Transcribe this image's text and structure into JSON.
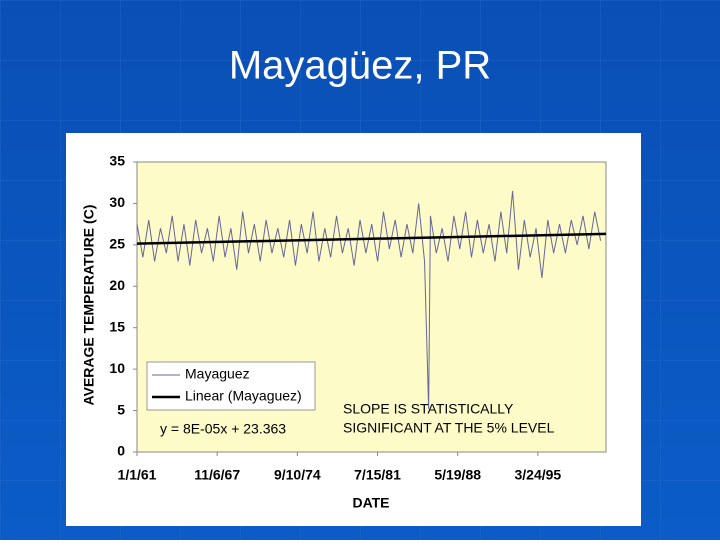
{
  "chart_data": {
    "type": "line",
    "title": "Mayagüez, PR",
    "xlabel": "DATE",
    "ylabel": "AVERAGE TEMPERATURE (C)",
    "xlim": [
      22282,
      36907
    ],
    "xticks": [
      {
        "value": 22282,
        "label": "1/1/61"
      },
      {
        "value": 24782,
        "label": "11/6/67"
      },
      {
        "value": 27282,
        "label": "9/10/74"
      },
      {
        "value": 29782,
        "label": "7/15/81"
      },
      {
        "value": 32282,
        "label": "5/19/88"
      },
      {
        "value": 34782,
        "label": "3/24/95"
      }
    ],
    "ylim": [
      0,
      35
    ],
    "yticks": [
      0,
      5,
      10,
      15,
      20,
      25,
      30,
      35
    ],
    "plot_background": "#fdfbc8",
    "series": [
      {
        "name": "Mayaguez",
        "color": "#66669a",
        "x": [
          22282,
          22465,
          22648,
          22831,
          23014,
          23197,
          23380,
          23563,
          23746,
          23929,
          24112,
          24295,
          24478,
          24661,
          24844,
          25027,
          25210,
          25393,
          25576,
          25759,
          25942,
          26125,
          26308,
          26491,
          26674,
          26857,
          27040,
          27223,
          27406,
          27589,
          27772,
          27955,
          28138,
          28321,
          28504,
          28687,
          28870,
          29053,
          29236,
          29419,
          29602,
          29785,
          29968,
          30151,
          30334,
          30517,
          30700,
          30883,
          31066,
          31249,
          31376,
          31432,
          31615,
          31798,
          31981,
          32164,
          32347,
          32530,
          32713,
          32896,
          33079,
          33262,
          33445,
          33628,
          33811,
          33994,
          34177,
          34360,
          34543,
          34726,
          34909,
          35092,
          35275,
          35458,
          35641,
          35824,
          36007,
          36190,
          36373,
          36556,
          36739
        ],
        "values": [
          27.5,
          23.5,
          28,
          23,
          27,
          24,
          28.5,
          23,
          27.5,
          22.5,
          28,
          24,
          27,
          23,
          28.5,
          23.5,
          27,
          22,
          29,
          24,
          27.5,
          23,
          28,
          24,
          27,
          23.5,
          28,
          22.5,
          27.5,
          24,
          29,
          23,
          27,
          23.5,
          28.5,
          24,
          27,
          22.5,
          28,
          24,
          27.5,
          23,
          29,
          24.5,
          28,
          23.5,
          27.5,
          24,
          30,
          23,
          5.2,
          28.5,
          24,
          27,
          23,
          28.5,
          24.5,
          29,
          23.5,
          28,
          24,
          27.5,
          23,
          29,
          24,
          31.5,
          22,
          28,
          23.5,
          27,
          21,
          28,
          24,
          27.5,
          24,
          28,
          25,
          28.5,
          24.5,
          29,
          25.5
        ]
      },
      {
        "name": "Linear (Mayaguez)",
        "color": "#000000",
        "x": [
          22282,
          36907
        ],
        "values": [
          25.15,
          26.32
        ]
      }
    ],
    "annotations": [
      "y = 8E-05x + 23.363",
      "SLOPE IS STATISTICALLY",
      "SIGNIFICANT AT THE 5% LEVEL"
    ]
  }
}
